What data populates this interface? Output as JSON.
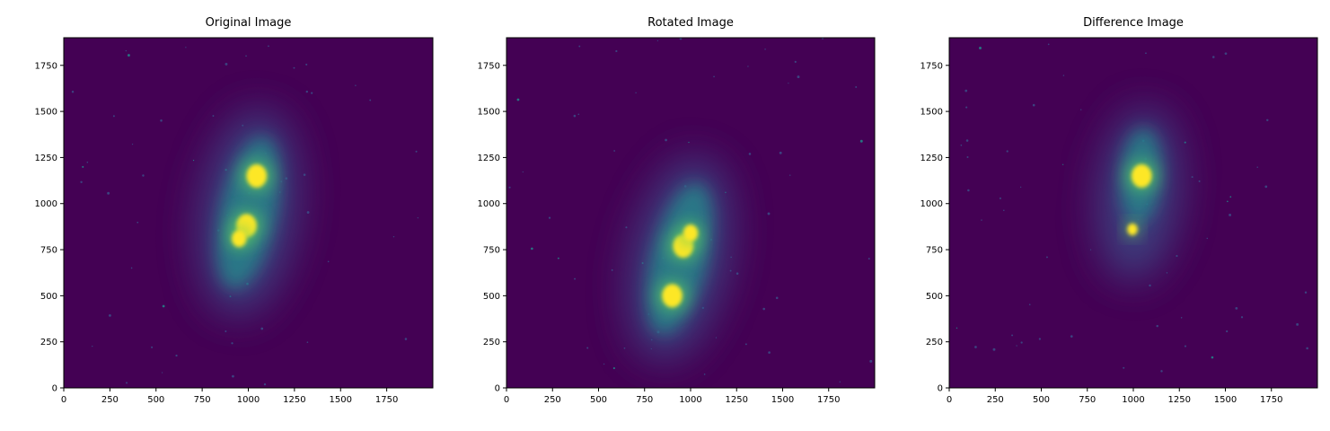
{
  "colors": {
    "background": "#440154",
    "faint": "#46085c",
    "halo": "#3b528b",
    "mid": "#21918c",
    "bright": "#5ec962",
    "core": "#fde725"
  },
  "chart_data": [
    {
      "type": "heatmap",
      "title": "Original Image",
      "xlabel": "",
      "ylabel": "",
      "xlim": [
        0,
        2000
      ],
      "ylim": [
        0,
        1900
      ],
      "xticks": [
        0,
        250,
        500,
        750,
        1000,
        1250,
        1500,
        1750
      ],
      "yticks": [
        0,
        250,
        500,
        750,
        1000,
        1250,
        1500,
        1750
      ],
      "colormap": "viridis",
      "features": [
        {
          "kind": "halo",
          "x": 1000,
          "y": 950,
          "rx": 260,
          "ry": 560,
          "angle": 8
        },
        {
          "kind": "arm",
          "x": 1000,
          "y": 950,
          "rx": 150,
          "ry": 420,
          "angle": 12
        },
        {
          "kind": "core",
          "x": 1045,
          "y": 1150,
          "r": 55
        },
        {
          "kind": "core",
          "x": 990,
          "y": 880,
          "r": 55
        },
        {
          "kind": "core",
          "x": 950,
          "y": 810,
          "r": 40
        }
      ]
    },
    {
      "type": "heatmap",
      "title": "Rotated Image",
      "xlabel": "",
      "ylabel": "",
      "xlim": [
        0,
        2000
      ],
      "ylim": [
        0,
        1900
      ],
      "xticks": [
        0,
        250,
        500,
        750,
        1000,
        1250,
        1500,
        1750
      ],
      "yticks": [
        0,
        250,
        500,
        750,
        1000,
        1250,
        1500,
        1750
      ],
      "colormap": "viridis",
      "features": [
        {
          "kind": "halo",
          "x": 940,
          "y": 700,
          "rx": 260,
          "ry": 560,
          "angle": 12
        },
        {
          "kind": "arm",
          "x": 940,
          "y": 700,
          "rx": 150,
          "ry": 420,
          "angle": 14
        },
        {
          "kind": "core",
          "x": 900,
          "y": 500,
          "r": 55
        },
        {
          "kind": "core",
          "x": 960,
          "y": 770,
          "r": 55
        },
        {
          "kind": "core",
          "x": 1000,
          "y": 840,
          "r": 40
        }
      ]
    },
    {
      "type": "heatmap",
      "title": "Difference Image",
      "xlabel": "",
      "ylabel": "",
      "xlim": [
        0,
        2000
      ],
      "ylim": [
        0,
        1900
      ],
      "xticks": [
        0,
        250,
        500,
        750,
        1000,
        1250,
        1500,
        1750
      ],
      "yticks": [
        0,
        250,
        500,
        750,
        1000,
        1250,
        1500,
        1750
      ],
      "colormap": "viridis",
      "features": [
        {
          "kind": "halo",
          "x": 1030,
          "y": 1050,
          "rx": 220,
          "ry": 470,
          "angle": 6
        },
        {
          "kind": "arm",
          "x": 1040,
          "y": 1150,
          "rx": 110,
          "ry": 260,
          "angle": 4
        },
        {
          "kind": "core",
          "x": 1045,
          "y": 1150,
          "r": 55
        },
        {
          "kind": "core",
          "x": 995,
          "y": 860,
          "r": 28
        }
      ]
    }
  ]
}
